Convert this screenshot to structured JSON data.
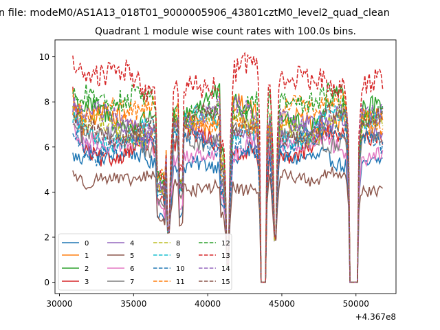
{
  "figure": {
    "suptitle": "n file: modeM0/AS1A13_018T01_9000005906_43801cztM0_level2_quad_clean",
    "title": "Quadrant 1 module wise count rates with 100.0s bins."
  },
  "chart_data": {
    "type": "line",
    "title": "Quadrant 1 module wise count rates with 100.0s bins.",
    "suptitle": "n file: modeM0/AS1A13_018T01_9000005906_43801cztM0_level2_quad_clean",
    "xlabel": "",
    "ylabel": "",
    "x_offset_text": "+4.367e8",
    "xlim": [
      29700,
      52700
    ],
    "ylim": [
      -0.5,
      10.75
    ],
    "x_ticks": [
      30000,
      35000,
      40000,
      45000,
      50000
    ],
    "x_tick_labels": [
      "30000",
      "35000",
      "40000",
      "45000",
      "50000"
    ],
    "y_ticks": [
      0,
      2,
      4,
      6,
      8,
      10
    ],
    "y_tick_labels": [
      "0",
      "2",
      "4",
      "6",
      "8",
      "10"
    ],
    "grid": false,
    "legend_placement": "lower-left",
    "legend_columns": 4,
    "x_start": 30900,
    "x_end": 51800,
    "bin_size": 100,
    "gaps": [
      {
        "start": 37300,
        "end": 37450,
        "min": 2.3
      },
      {
        "start": 41300,
        "end": 41450,
        "min": 0.8
      },
      {
        "start": 43600,
        "end": 43900,
        "min": 0.0
      },
      {
        "start": 44450,
        "end": 44600,
        "min": 2.0
      },
      {
        "start": 49600,
        "end": 50100,
        "min": 0.0
      }
    ],
    "dip_extra": [
      {
        "start": 36600,
        "end": 37100,
        "factor": 0.6
      },
      {
        "start": 38100,
        "end": 38300,
        "factor": 0.6
      },
      {
        "start": 40900,
        "end": 41200,
        "factor": 0.7
      }
    ],
    "series": [
      {
        "name": "0",
        "color": "#1f77b4",
        "dash": "solid",
        "level": 5.4,
        "start": 5.6
      },
      {
        "name": "1",
        "color": "#ff7f0e",
        "dash": "solid",
        "level": 7.2,
        "start": 7.8
      },
      {
        "name": "2",
        "color": "#2ca02c",
        "dash": "solid",
        "level": 7.6,
        "start": 8.3
      },
      {
        "name": "3",
        "color": "#d62728",
        "dash": "solid",
        "level": 6.0,
        "start": 8.4
      },
      {
        "name": "4",
        "color": "#9467bd",
        "dash": "solid",
        "level": 6.6,
        "start": 8.0
      },
      {
        "name": "5",
        "color": "#8c564b",
        "dash": "solid",
        "level": 4.4,
        "start": 4.9
      },
      {
        "name": "6",
        "color": "#e377c2",
        "dash": "solid",
        "level": 5.9,
        "start": 6.8
      },
      {
        "name": "7",
        "color": "#7f7f7f",
        "dash": "solid",
        "level": 6.4,
        "start": 7.1
      },
      {
        "name": "8",
        "color": "#bcbd22",
        "dash": "dashed",
        "level": 7.0,
        "start": 7.6
      },
      {
        "name": "9",
        "color": "#17becf",
        "dash": "dashed",
        "level": 6.8,
        "start": 7.4
      },
      {
        "name": "10",
        "color": "#1f77b4",
        "dash": "dashed",
        "level": 6.1,
        "start": 6.6
      },
      {
        "name": "11",
        "color": "#ff7f0e",
        "dash": "dashed",
        "level": 7.4,
        "start": 8.2
      },
      {
        "name": "12",
        "color": "#2ca02c",
        "dash": "dashed",
        "level": 7.8,
        "start": 8.6
      },
      {
        "name": "13",
        "color": "#d62728",
        "dash": "dashed",
        "level": 8.9,
        "start": 9.9
      },
      {
        "name": "14",
        "color": "#9467bd",
        "dash": "dashed",
        "level": 7.3,
        "start": 8.0
      },
      {
        "name": "15",
        "color": "#8c564b",
        "dash": "dashed",
        "level": 6.9,
        "start": 7.5
      }
    ]
  }
}
